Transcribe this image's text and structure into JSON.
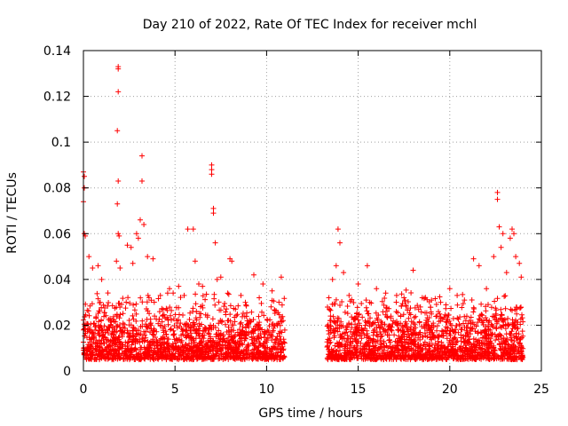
{
  "chart_data": {
    "type": "scatter",
    "title": "Day 210 of 2022, Rate Of TEC Index for receiver mchl",
    "xlabel": "GPS time / hours",
    "ylabel": "ROTI / TECUs",
    "xlim": [
      0,
      25
    ],
    "ylim": [
      0,
      0.14
    ],
    "x_ticks": [
      0,
      5,
      10,
      15,
      20,
      25
    ],
    "x_tick_labels": [
      "0",
      "5",
      "10",
      "15",
      "20",
      "25"
    ],
    "y_ticks": [
      0,
      0.02,
      0.04,
      0.06,
      0.08,
      0.1,
      0.12,
      0.14
    ],
    "y_tick_labels": [
      "0",
      "0.02",
      "0.04",
      "0.06",
      "0.08",
      "0.1",
      "0.12",
      "0.14"
    ],
    "grid": true,
    "marker": "+",
    "series": [
      {
        "name": "ROTI",
        "color": "#ff0000",
        "data_gap_hours": [
          11.0,
          13.3
        ],
        "points": [
          [
            0.0,
            0.087
          ],
          [
            0.05,
            0.085
          ],
          [
            0.05,
            0.08
          ],
          [
            0.0,
            0.074
          ],
          [
            0.05,
            0.06
          ],
          [
            0.1,
            0.059
          ],
          [
            0.3,
            0.05
          ],
          [
            0.5,
            0.045
          ],
          [
            0.8,
            0.046
          ],
          [
            1.0,
            0.04
          ],
          [
            1.9,
            0.133
          ],
          [
            1.9,
            0.132
          ],
          [
            1.9,
            0.122
          ],
          [
            1.85,
            0.105
          ],
          [
            1.9,
            0.083
          ],
          [
            1.85,
            0.073
          ],
          [
            1.9,
            0.06
          ],
          [
            1.95,
            0.059
          ],
          [
            1.8,
            0.048
          ],
          [
            2.0,
            0.045
          ],
          [
            2.4,
            0.055
          ],
          [
            2.6,
            0.054
          ],
          [
            2.7,
            0.047
          ],
          [
            2.9,
            0.06
          ],
          [
            3.0,
            0.058
          ],
          [
            3.1,
            0.066
          ],
          [
            3.2,
            0.094
          ],
          [
            3.2,
            0.083
          ],
          [
            3.3,
            0.064
          ],
          [
            3.5,
            0.05
          ],
          [
            3.8,
            0.049
          ],
          [
            4.2,
            0.033
          ],
          [
            4.6,
            0.034
          ],
          [
            4.7,
            0.036
          ],
          [
            4.9,
            0.034
          ],
          [
            5.2,
            0.037
          ],
          [
            5.5,
            0.033
          ],
          [
            5.7,
            0.062
          ],
          [
            6.0,
            0.062
          ],
          [
            6.1,
            0.048
          ],
          [
            6.3,
            0.038
          ],
          [
            6.5,
            0.037
          ],
          [
            7.0,
            0.09
          ],
          [
            7.0,
            0.088
          ],
          [
            7.0,
            0.086
          ],
          [
            7.1,
            0.071
          ],
          [
            7.1,
            0.069
          ],
          [
            7.2,
            0.056
          ],
          [
            7.3,
            0.04
          ],
          [
            7.5,
            0.041
          ],
          [
            8.0,
            0.049
          ],
          [
            8.1,
            0.048
          ],
          [
            8.6,
            0.033
          ],
          [
            9.3,
            0.042
          ],
          [
            9.6,
            0.032
          ],
          [
            9.8,
            0.038
          ],
          [
            10.3,
            0.035
          ],
          [
            10.8,
            0.041
          ],
          [
            10.9,
            0.022
          ],
          [
            13.4,
            0.032
          ],
          [
            13.6,
            0.04
          ],
          [
            13.8,
            0.046
          ],
          [
            13.9,
            0.062
          ],
          [
            14.0,
            0.056
          ],
          [
            14.2,
            0.043
          ],
          [
            14.5,
            0.033
          ],
          [
            15.0,
            0.038
          ],
          [
            15.5,
            0.046
          ],
          [
            16.0,
            0.036
          ],
          [
            16.5,
            0.034
          ],
          [
            17.1,
            0.033
          ],
          [
            17.5,
            0.032
          ],
          [
            18.0,
            0.044
          ],
          [
            18.5,
            0.032
          ],
          [
            19.0,
            0.031
          ],
          [
            19.5,
            0.03
          ],
          [
            20.0,
            0.036
          ],
          [
            20.4,
            0.033
          ],
          [
            20.8,
            0.031
          ],
          [
            21.3,
            0.049
          ],
          [
            21.6,
            0.046
          ],
          [
            22.0,
            0.036
          ],
          [
            22.4,
            0.05
          ],
          [
            22.6,
            0.078
          ],
          [
            22.6,
            0.075
          ],
          [
            22.7,
            0.063
          ],
          [
            22.8,
            0.054
          ],
          [
            22.9,
            0.06
          ],
          [
            23.1,
            0.043
          ],
          [
            23.3,
            0.058
          ],
          [
            23.4,
            0.062
          ],
          [
            23.5,
            0.06
          ],
          [
            23.6,
            0.05
          ],
          [
            23.8,
            0.047
          ],
          [
            23.9,
            0.041
          ]
        ]
      }
    ]
  }
}
